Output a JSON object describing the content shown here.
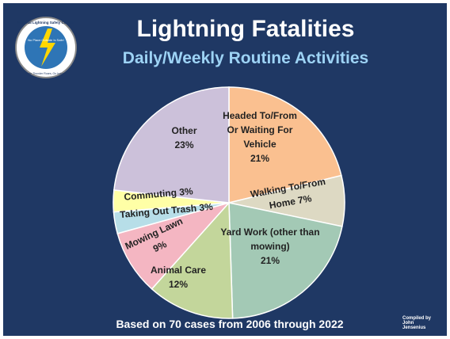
{
  "chart_data": {
    "type": "pie",
    "title": "Lightning Fatalities",
    "subtitle": "Daily/Weekly Routine Activities",
    "footnote": "Based on 70 cases from 2006 through 2022",
    "credit": "Compiled by John Jensenius",
    "logo": {
      "name": "National Lightning Safety Council",
      "motto": "No Place Outside Is Safe!",
      "slogan": "When Thunder Roars, Go Indoors!"
    },
    "categories": [
      "Headed To/From Or Waiting For Vehicle",
      "Walking To/From Home",
      "Yard Work (other than mowing)",
      "Animal Care",
      "Mowing Lawn",
      "Taking Out Trash",
      "Commuting",
      "Other"
    ],
    "values": [
      21,
      7,
      21,
      12,
      9,
      3,
      3,
      23
    ],
    "value_labels": [
      "21%",
      "7%",
      "21%",
      "12%",
      "9%",
      "3%",
      "3%",
      "23%"
    ],
    "colors": [
      "#fac090",
      "#ddd9c3",
      "#a3c9b5",
      "#c3d69b",
      "#f4b6c2",
      "#b7dee8",
      "#ffffa6",
      "#ccc1da"
    ]
  }
}
